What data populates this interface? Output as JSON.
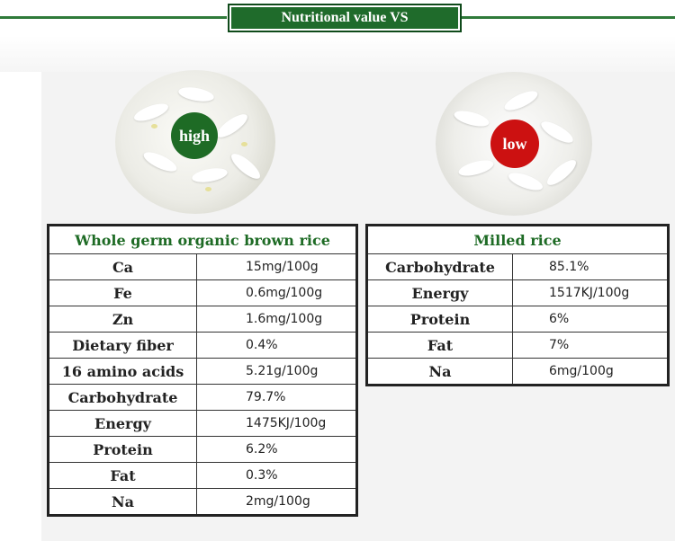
{
  "header": {
    "title": "Nutritional value VS"
  },
  "badges": {
    "high": "high",
    "low": "low"
  },
  "brown_rice": {
    "title": "Whole germ organic brown rice",
    "rows": [
      {
        "name": "Ca",
        "value": "15mg/100g"
      },
      {
        "name": "Fe",
        "value": "0.6mg/100g"
      },
      {
        "name": "Zn",
        "value": "1.6mg/100g"
      },
      {
        "name": "Dietary fiber",
        "value": "0.4%"
      },
      {
        "name": "16 amino acids",
        "value": "5.21g/100g"
      },
      {
        "name": "Carbohydrate",
        "value": "79.7%"
      },
      {
        "name": "Energy",
        "value": "1475KJ/100g"
      },
      {
        "name": "Protein",
        "value": "6.2%"
      },
      {
        "name": "Fat",
        "value": "0.3%"
      },
      {
        "name": "Na",
        "value": "2mg/100g"
      }
    ]
  },
  "milled_rice": {
    "title": "Milled rice",
    "rows": [
      {
        "name": "Carbohydrate",
        "value": "85.1%"
      },
      {
        "name": "Energy",
        "value": "1517KJ/100g"
      },
      {
        "name": "Protein",
        "value": "6%"
      },
      {
        "name": "Fat",
        "value": "7%"
      },
      {
        "name": "Na",
        "value": "6mg/100g"
      }
    ]
  },
  "colors": {
    "accent_green": "#1e6b25",
    "low_red": "#cc1111"
  }
}
